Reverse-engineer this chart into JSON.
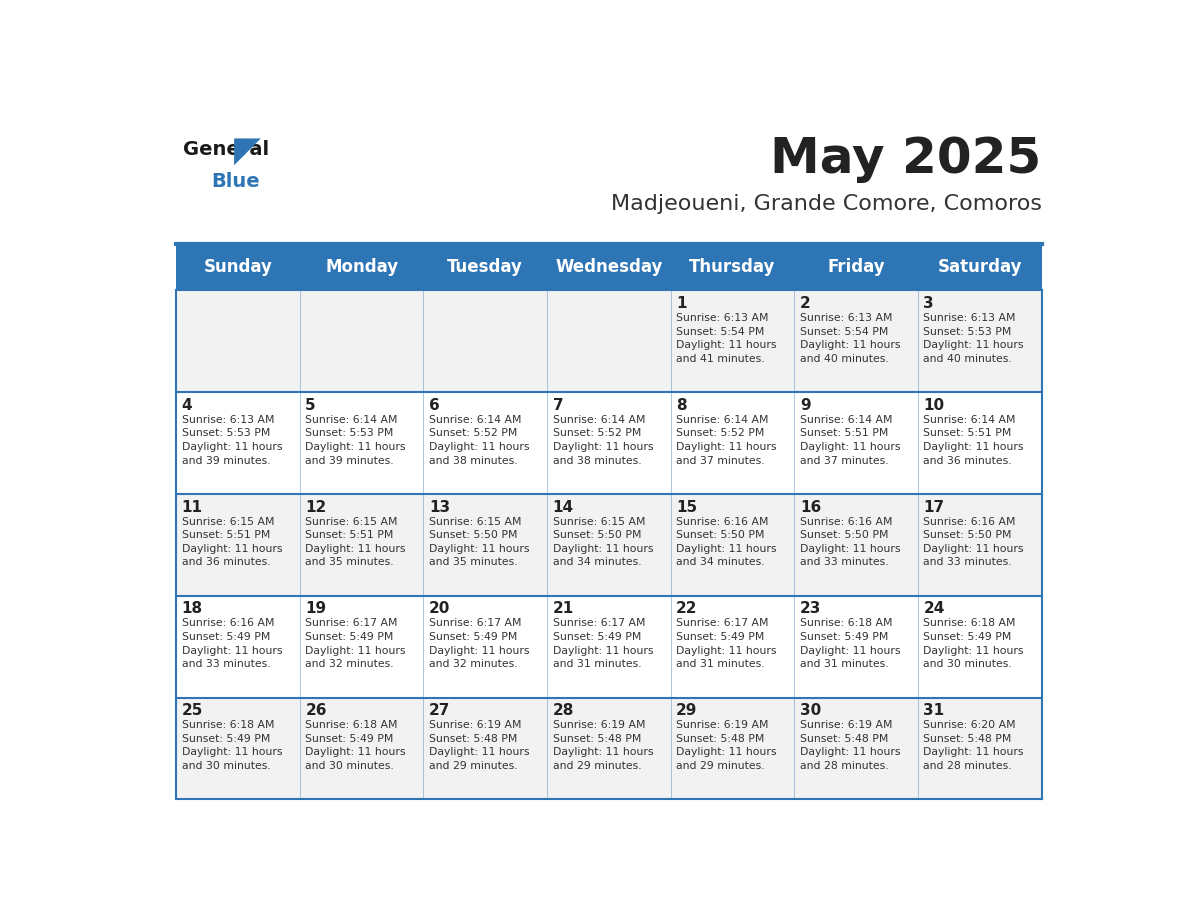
{
  "title": "May 2025",
  "subtitle": "Madjeoueni, Grande Comore, Comoros",
  "days_of_week": [
    "Sunday",
    "Monday",
    "Tuesday",
    "Wednesday",
    "Thursday",
    "Friday",
    "Saturday"
  ],
  "header_bg": "#2E75B6",
  "header_text": "#FFFFFF",
  "odd_row_bg": "#F2F2F2",
  "even_row_bg": "#FFFFFF",
  "cell_text_color": "#333333",
  "day_num_color": "#222222",
  "title_color": "#222222",
  "subtitle_color": "#333333",
  "border_color": "#2E75B6",
  "calendar": [
    [
      {
        "day": null,
        "info": ""
      },
      {
        "day": null,
        "info": ""
      },
      {
        "day": null,
        "info": ""
      },
      {
        "day": null,
        "info": ""
      },
      {
        "day": 1,
        "info": "Sunrise: 6:13 AM\nSunset: 5:54 PM\nDaylight: 11 hours\nand 41 minutes."
      },
      {
        "day": 2,
        "info": "Sunrise: 6:13 AM\nSunset: 5:54 PM\nDaylight: 11 hours\nand 40 minutes."
      },
      {
        "day": 3,
        "info": "Sunrise: 6:13 AM\nSunset: 5:53 PM\nDaylight: 11 hours\nand 40 minutes."
      }
    ],
    [
      {
        "day": 4,
        "info": "Sunrise: 6:13 AM\nSunset: 5:53 PM\nDaylight: 11 hours\nand 39 minutes."
      },
      {
        "day": 5,
        "info": "Sunrise: 6:14 AM\nSunset: 5:53 PM\nDaylight: 11 hours\nand 39 minutes."
      },
      {
        "day": 6,
        "info": "Sunrise: 6:14 AM\nSunset: 5:52 PM\nDaylight: 11 hours\nand 38 minutes."
      },
      {
        "day": 7,
        "info": "Sunrise: 6:14 AM\nSunset: 5:52 PM\nDaylight: 11 hours\nand 38 minutes."
      },
      {
        "day": 8,
        "info": "Sunrise: 6:14 AM\nSunset: 5:52 PM\nDaylight: 11 hours\nand 37 minutes."
      },
      {
        "day": 9,
        "info": "Sunrise: 6:14 AM\nSunset: 5:51 PM\nDaylight: 11 hours\nand 37 minutes."
      },
      {
        "day": 10,
        "info": "Sunrise: 6:14 AM\nSunset: 5:51 PM\nDaylight: 11 hours\nand 36 minutes."
      }
    ],
    [
      {
        "day": 11,
        "info": "Sunrise: 6:15 AM\nSunset: 5:51 PM\nDaylight: 11 hours\nand 36 minutes."
      },
      {
        "day": 12,
        "info": "Sunrise: 6:15 AM\nSunset: 5:51 PM\nDaylight: 11 hours\nand 35 minutes."
      },
      {
        "day": 13,
        "info": "Sunrise: 6:15 AM\nSunset: 5:50 PM\nDaylight: 11 hours\nand 35 minutes."
      },
      {
        "day": 14,
        "info": "Sunrise: 6:15 AM\nSunset: 5:50 PM\nDaylight: 11 hours\nand 34 minutes."
      },
      {
        "day": 15,
        "info": "Sunrise: 6:16 AM\nSunset: 5:50 PM\nDaylight: 11 hours\nand 34 minutes."
      },
      {
        "day": 16,
        "info": "Sunrise: 6:16 AM\nSunset: 5:50 PM\nDaylight: 11 hours\nand 33 minutes."
      },
      {
        "day": 17,
        "info": "Sunrise: 6:16 AM\nSunset: 5:50 PM\nDaylight: 11 hours\nand 33 minutes."
      }
    ],
    [
      {
        "day": 18,
        "info": "Sunrise: 6:16 AM\nSunset: 5:49 PM\nDaylight: 11 hours\nand 33 minutes."
      },
      {
        "day": 19,
        "info": "Sunrise: 6:17 AM\nSunset: 5:49 PM\nDaylight: 11 hours\nand 32 minutes."
      },
      {
        "day": 20,
        "info": "Sunrise: 6:17 AM\nSunset: 5:49 PM\nDaylight: 11 hours\nand 32 minutes."
      },
      {
        "day": 21,
        "info": "Sunrise: 6:17 AM\nSunset: 5:49 PM\nDaylight: 11 hours\nand 31 minutes."
      },
      {
        "day": 22,
        "info": "Sunrise: 6:17 AM\nSunset: 5:49 PM\nDaylight: 11 hours\nand 31 minutes."
      },
      {
        "day": 23,
        "info": "Sunrise: 6:18 AM\nSunset: 5:49 PM\nDaylight: 11 hours\nand 31 minutes."
      },
      {
        "day": 24,
        "info": "Sunrise: 6:18 AM\nSunset: 5:49 PM\nDaylight: 11 hours\nand 30 minutes."
      }
    ],
    [
      {
        "day": 25,
        "info": "Sunrise: 6:18 AM\nSunset: 5:49 PM\nDaylight: 11 hours\nand 30 minutes."
      },
      {
        "day": 26,
        "info": "Sunrise: 6:18 AM\nSunset: 5:49 PM\nDaylight: 11 hours\nand 30 minutes."
      },
      {
        "day": 27,
        "info": "Sunrise: 6:19 AM\nSunset: 5:48 PM\nDaylight: 11 hours\nand 29 minutes."
      },
      {
        "day": 28,
        "info": "Sunrise: 6:19 AM\nSunset: 5:48 PM\nDaylight: 11 hours\nand 29 minutes."
      },
      {
        "day": 29,
        "info": "Sunrise: 6:19 AM\nSunset: 5:48 PM\nDaylight: 11 hours\nand 29 minutes."
      },
      {
        "day": 30,
        "info": "Sunrise: 6:19 AM\nSunset: 5:48 PM\nDaylight: 11 hours\nand 28 minutes."
      },
      {
        "day": 31,
        "info": "Sunrise: 6:20 AM\nSunset: 5:48 PM\nDaylight: 11 hours\nand 28 minutes."
      }
    ]
  ]
}
